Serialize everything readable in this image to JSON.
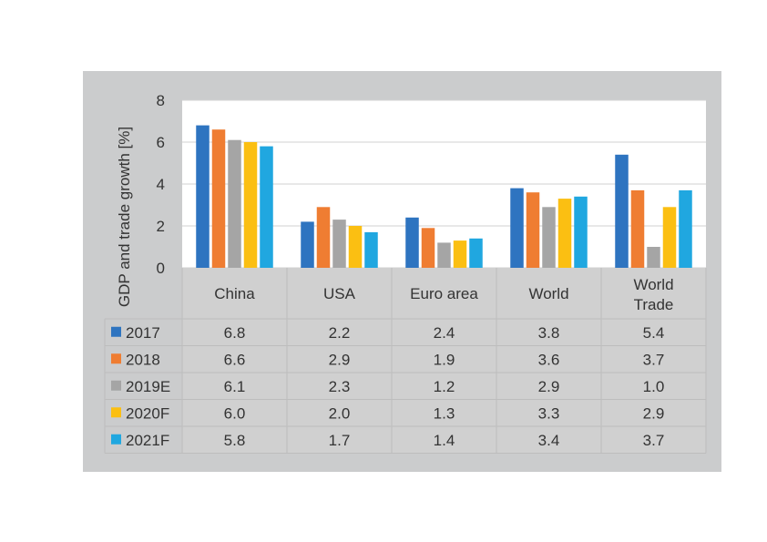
{
  "chart_data": {
    "type": "bar",
    "ylabel": "GDP and trade growth [%]",
    "ylim": [
      0,
      8
    ],
    "yticks": [
      0,
      2,
      4,
      6,
      8
    ],
    "categories": [
      "China",
      "USA",
      "Euro area",
      "World",
      "World Trade"
    ],
    "category_lines": [
      [
        "China"
      ],
      [
        "USA"
      ],
      [
        "Euro area"
      ],
      [
        "World"
      ],
      [
        "World",
        "Trade"
      ]
    ],
    "series": [
      {
        "name": "2017",
        "color": "#2e74c0",
        "values": [
          6.8,
          2.2,
          2.4,
          3.8,
          5.4
        ],
        "labels": [
          "6.8",
          "2.2",
          "2.4",
          "3.8",
          "5.4"
        ]
      },
      {
        "name": "2018",
        "color": "#ef7d32",
        "values": [
          6.6,
          2.9,
          1.9,
          3.6,
          3.7
        ],
        "labels": [
          "6.6",
          "2.9",
          "1.9",
          "3.6",
          "3.7"
        ]
      },
      {
        "name": "2019E",
        "color": "#a5a5a5",
        "values": [
          6.1,
          2.3,
          1.2,
          2.9,
          1.0
        ],
        "labels": [
          "6.1",
          "2.3",
          "1.2",
          "2.9",
          "1.0"
        ]
      },
      {
        "name": "2020F",
        "color": "#fbbf12",
        "values": [
          6.0,
          2.0,
          1.3,
          3.3,
          2.9
        ],
        "labels": [
          "6.0",
          "2.0",
          "1.3",
          "3.3",
          "2.9"
        ]
      },
      {
        "name": "2021F",
        "color": "#20a7e0",
        "values": [
          5.8,
          1.7,
          1.4,
          3.4,
          3.7
        ],
        "labels": [
          "5.8",
          "1.7",
          "1.4",
          "3.4",
          "3.7"
        ]
      }
    ],
    "grid": true,
    "data_table": true
  }
}
